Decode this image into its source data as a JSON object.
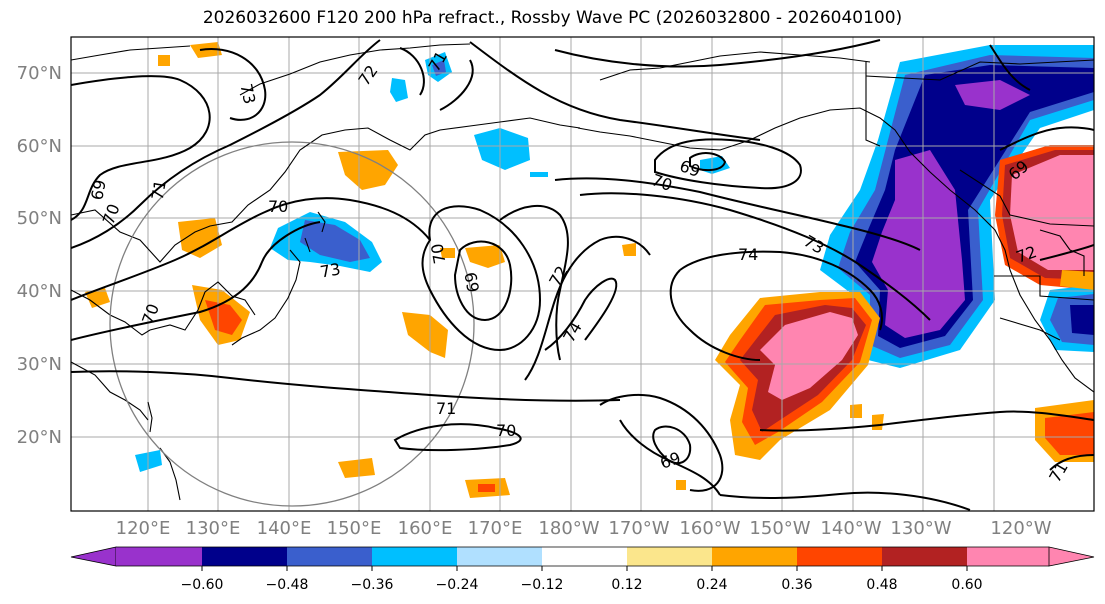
{
  "title": "2026032600 F120 200 hPa refract., Rossby Wave PC (2026032800 - 2026040100)",
  "lat_labels": [
    "70°N",
    "60°N",
    "50°N",
    "40°N",
    "30°N",
    "20°N"
  ],
  "lon_labels": [
    "120°E",
    "130°E",
    "140°E",
    "150°E",
    "160°E",
    "170°E",
    "180°W",
    "170°W",
    "160°W",
    "150°W",
    "140°W",
    "130°W",
    "120°W"
  ],
  "contour_labels": [
    "73",
    "72",
    "71",
    "69",
    "70",
    "71",
    "70",
    "70",
    "73",
    "70",
    "69",
    "69",
    "70",
    "72",
    "74",
    "74",
    "73",
    "69",
    "72",
    "71",
    "70",
    "69",
    "71"
  ],
  "colorbar": {
    "ticks": [
      "−0.60",
      "−0.48",
      "−0.36",
      "−0.24",
      "−0.12",
      "0.12",
      "0.24",
      "0.36",
      "0.48",
      "0.60"
    ],
    "colors": [
      "#9932cc",
      "#00008b",
      "#3a5fcd",
      "#00bfff",
      "#b0e0ff",
      "#ffffff",
      "#fbe68c",
      "#ffa500",
      "#ff4500",
      "#b22222",
      "#ff85b0"
    ]
  }
}
